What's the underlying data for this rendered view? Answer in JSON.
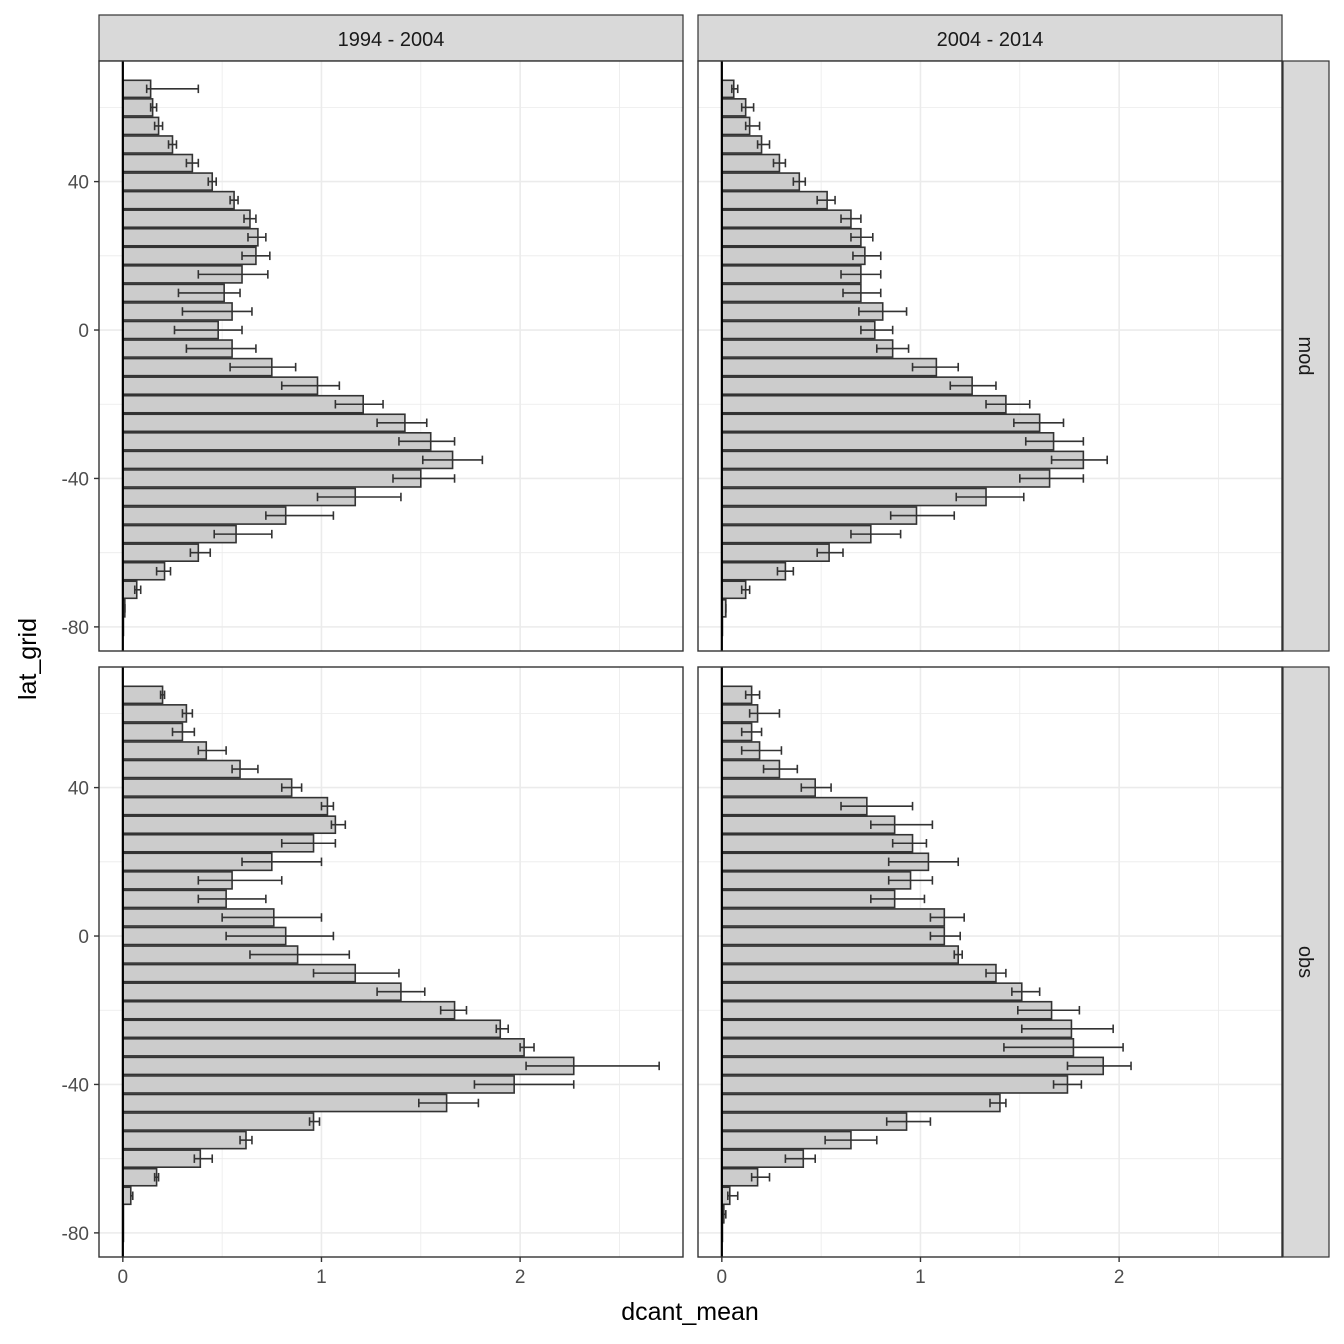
{
  "chart_data": {
    "type": "bar",
    "orientation": "horizontal",
    "xlabel": "dcant_mean",
    "ylabel": "lat_grid",
    "xlim": [
      -0.12,
      2.82
    ],
    "ylim": [
      -86.5,
      72.5
    ],
    "x_ticks": [
      "0",
      "1",
      "2"
    ],
    "y_ticks": [
      "-80",
      "-40",
      "0",
      "40"
    ],
    "col_facets": [
      "1994 - 2004",
      "2004 - 2014"
    ],
    "row_facets": [
      "mod",
      "obs"
    ],
    "lat": [
      65,
      60,
      55,
      50,
      45,
      40,
      35,
      30,
      25,
      20,
      15,
      10,
      5,
      0,
      -5,
      -10,
      -15,
      -20,
      -25,
      -30,
      -35,
      -40,
      -45,
      -50,
      -55,
      -60,
      -65,
      -70,
      -75,
      -80
    ],
    "colors": {
      "bar_fill": "#cccccc",
      "bar_outline": "#333333",
      "error_bar": "#333333",
      "grid": "#ebebeb",
      "strip": "#d9d9d9",
      "frame": "#333333"
    },
    "grid": true,
    "panels": [
      {
        "col": "1994 - 2004",
        "row": "mod",
        "values": [
          0.14,
          0.15,
          0.18,
          0.25,
          0.35,
          0.45,
          0.56,
          0.64,
          0.68,
          0.67,
          0.6,
          0.51,
          0.55,
          0.48,
          0.55,
          0.75,
          0.98,
          1.21,
          1.42,
          1.55,
          1.66,
          1.5,
          1.17,
          0.82,
          0.57,
          0.38,
          0.21,
          0.07,
          0.01,
          0.0
        ],
        "err_low": [
          0.12,
          0.14,
          0.16,
          0.23,
          0.32,
          0.43,
          0.54,
          0.61,
          0.63,
          0.6,
          0.38,
          0.28,
          0.3,
          0.26,
          0.32,
          0.54,
          0.8,
          1.07,
          1.28,
          1.39,
          1.51,
          1.36,
          0.98,
          0.72,
          0.46,
          0.34,
          0.17,
          0.06,
          0.01,
          0.0
        ],
        "err_high": [
          0.38,
          0.17,
          0.2,
          0.27,
          0.38,
          0.47,
          0.58,
          0.67,
          0.72,
          0.74,
          0.73,
          0.59,
          0.65,
          0.6,
          0.67,
          0.87,
          1.09,
          1.31,
          1.53,
          1.67,
          1.81,
          1.67,
          1.4,
          1.06,
          0.75,
          0.44,
          0.24,
          0.09,
          0.01,
          0.0
        ]
      },
      {
        "col": "2004 - 2014",
        "row": "mod",
        "values": [
          0.06,
          0.12,
          0.14,
          0.2,
          0.29,
          0.39,
          0.53,
          0.65,
          0.7,
          0.72,
          0.7,
          0.7,
          0.81,
          0.77,
          0.86,
          1.08,
          1.26,
          1.43,
          1.6,
          1.67,
          1.82,
          1.65,
          1.33,
          0.98,
          0.75,
          0.54,
          0.32,
          0.12,
          0.02,
          0.0
        ],
        "err_low": [
          0.05,
          0.1,
          0.12,
          0.18,
          0.26,
          0.36,
          0.48,
          0.6,
          0.65,
          0.66,
          0.6,
          0.61,
          0.69,
          0.7,
          0.78,
          0.96,
          1.15,
          1.33,
          1.47,
          1.53,
          1.66,
          1.5,
          1.18,
          0.85,
          0.65,
          0.48,
          0.28,
          0.1,
          0.02,
          0.0
        ],
        "err_high": [
          0.08,
          0.16,
          0.19,
          0.24,
          0.32,
          0.42,
          0.57,
          0.7,
          0.76,
          0.8,
          0.8,
          0.8,
          0.93,
          0.86,
          0.94,
          1.19,
          1.38,
          1.55,
          1.72,
          1.82,
          1.94,
          1.82,
          1.52,
          1.17,
          0.9,
          0.61,
          0.36,
          0.14,
          0.02,
          0.0
        ]
      },
      {
        "col": "1994 - 2004",
        "row": "obs",
        "values": [
          0.2,
          0.32,
          0.3,
          0.42,
          0.59,
          0.85,
          1.03,
          1.07,
          0.96,
          0.75,
          0.55,
          0.52,
          0.76,
          0.82,
          0.88,
          1.17,
          1.4,
          1.67,
          1.9,
          2.02,
          2.27,
          1.97,
          1.63,
          0.96,
          0.62,
          0.39,
          0.17,
          0.04,
          0.0,
          0.0
        ],
        "err_low": [
          0.19,
          0.3,
          0.25,
          0.38,
          0.55,
          0.8,
          1.0,
          1.05,
          0.8,
          0.6,
          0.38,
          0.38,
          0.5,
          0.52,
          0.64,
          0.96,
          1.28,
          1.6,
          1.88,
          2.0,
          2.03,
          1.77,
          1.49,
          0.94,
          0.59,
          0.36,
          0.16,
          0.04,
          0.0,
          0.0
        ],
        "err_high": [
          0.21,
          0.35,
          0.36,
          0.52,
          0.68,
          0.9,
          1.06,
          1.12,
          1.07,
          1.0,
          0.8,
          0.72,
          1.0,
          1.06,
          1.14,
          1.39,
          1.52,
          1.73,
          1.94,
          2.07,
          2.7,
          2.27,
          1.79,
          0.99,
          0.65,
          0.45,
          0.18,
          0.05,
          0.0,
          0.0
        ]
      },
      {
        "col": "2004 - 2014",
        "row": "obs",
        "values": [
          0.15,
          0.18,
          0.15,
          0.19,
          0.29,
          0.47,
          0.73,
          0.87,
          0.96,
          1.04,
          0.95,
          0.87,
          1.12,
          1.12,
          1.19,
          1.38,
          1.51,
          1.66,
          1.76,
          1.77,
          1.92,
          1.74,
          1.4,
          0.93,
          0.65,
          0.41,
          0.18,
          0.04,
          0.01,
          0.0
        ],
        "err_low": [
          0.12,
          0.14,
          0.1,
          0.1,
          0.21,
          0.4,
          0.6,
          0.75,
          0.86,
          0.84,
          0.84,
          0.75,
          1.05,
          1.05,
          1.17,
          1.33,
          1.46,
          1.49,
          1.51,
          1.42,
          1.74,
          1.67,
          1.35,
          0.83,
          0.52,
          0.32,
          0.15,
          0.03,
          0.0,
          0.0
        ],
        "err_high": [
          0.19,
          0.29,
          0.2,
          0.3,
          0.38,
          0.55,
          0.96,
          1.06,
          1.03,
          1.19,
          1.06,
          1.02,
          1.22,
          1.2,
          1.21,
          1.43,
          1.6,
          1.8,
          1.97,
          2.02,
          2.06,
          1.81,
          1.43,
          1.05,
          0.78,
          0.47,
          0.24,
          0.08,
          0.02,
          0.0
        ]
      }
    ]
  }
}
